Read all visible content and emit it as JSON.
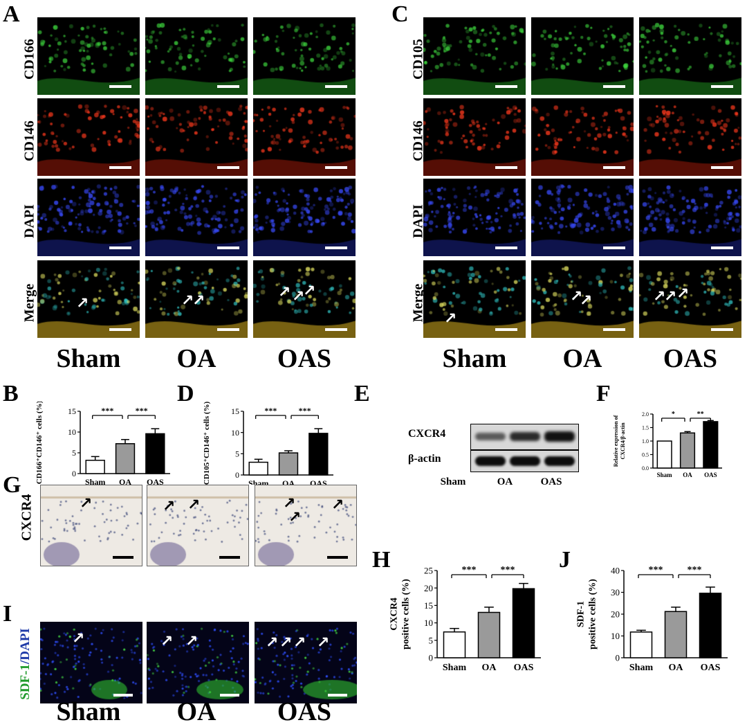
{
  "labels": {
    "A": "A",
    "B": "B",
    "C": "C",
    "D": "D",
    "E": "E",
    "F": "F",
    "G": "G",
    "H": "H",
    "I": "I",
    "J": "J"
  },
  "groups": [
    "Sham",
    "OA",
    "OAS"
  ],
  "panelA": {
    "rows": [
      "CD166",
      "CD146",
      "DAPI",
      "Merge"
    ]
  },
  "panelC": {
    "rows": [
      "CD105",
      "CD146",
      "DAPI",
      "Merge"
    ]
  },
  "panelG": {
    "row": "CXCR4"
  },
  "panelI": {
    "row_green": "SDF-1",
    "row_sep": "/",
    "row_blue": "DAPI"
  },
  "western": {
    "bands": [
      "CXCR4",
      "β-actin"
    ]
  },
  "colors": {
    "green": "#2fc62f",
    "red": "#e23018",
    "blue": "#2236c8",
    "bar_gray": "#9a9a9a",
    "bar_black": "#000000"
  },
  "chart_data": [
    {
      "id": "B",
      "type": "bar",
      "categories": [
        "Sham",
        "OA",
        "OAS"
      ],
      "values": [
        3.2,
        7.2,
        9.6
      ],
      "errors": [
        0.9,
        1.0,
        1.2
      ],
      "ylabel": "CD166⁺CD146⁺ cells (%)",
      "ylim": [
        0,
        15
      ],
      "yticks": [
        "0",
        "5",
        "10",
        "15"
      ],
      "significance": [
        "***",
        "***"
      ]
    },
    {
      "id": "D",
      "type": "bar",
      "categories": [
        "Sham",
        "OA",
        "OAS"
      ],
      "values": [
        3.0,
        5.2,
        9.8
      ],
      "errors": [
        0.7,
        0.5,
        1.1
      ],
      "ylabel": "CD105⁺CD146⁺ cells (%)",
      "ylim": [
        0,
        15
      ],
      "yticks": [
        "0",
        "5",
        "10",
        "15"
      ],
      "significance": [
        "***",
        "***"
      ]
    },
    {
      "id": "F",
      "type": "bar",
      "categories": [
        "Sham",
        "OA",
        "OAS"
      ],
      "values": [
        1.0,
        1.3,
        1.72
      ],
      "errors": [
        0.0,
        0.05,
        0.04
      ],
      "ylabel": "Relative expression of CXCR4/β-actin",
      "ylim": [
        0,
        2.0
      ],
      "yticks": [
        "0.0",
        "0.5",
        "1.0",
        "1.5",
        "2.0"
      ],
      "significance": [
        "*",
        "**"
      ]
    },
    {
      "id": "H",
      "type": "bar",
      "categories": [
        "Sham",
        "OA",
        "OAS"
      ],
      "values": [
        7.4,
        13.0,
        19.8
      ],
      "errors": [
        1.0,
        1.5,
        1.5
      ],
      "ylabel": "CXCR4 positive cells (%)",
      "ylim": [
        0,
        25
      ],
      "yticks": [
        "0",
        "5",
        "10",
        "15",
        "20",
        "25"
      ],
      "significance": [
        "***",
        "***"
      ]
    },
    {
      "id": "J",
      "type": "bar",
      "categories": [
        "Sham",
        "OA",
        "OAS"
      ],
      "values": [
        11.8,
        21.2,
        29.6
      ],
      "errors": [
        0.8,
        2.0,
        2.8
      ],
      "ylabel": "SDF-1 positive cells (%)",
      "ylim": [
        0,
        40
      ],
      "yticks": [
        "0",
        "10",
        "20",
        "30",
        "40"
      ],
      "significance": [
        "***",
        "***"
      ]
    }
  ]
}
